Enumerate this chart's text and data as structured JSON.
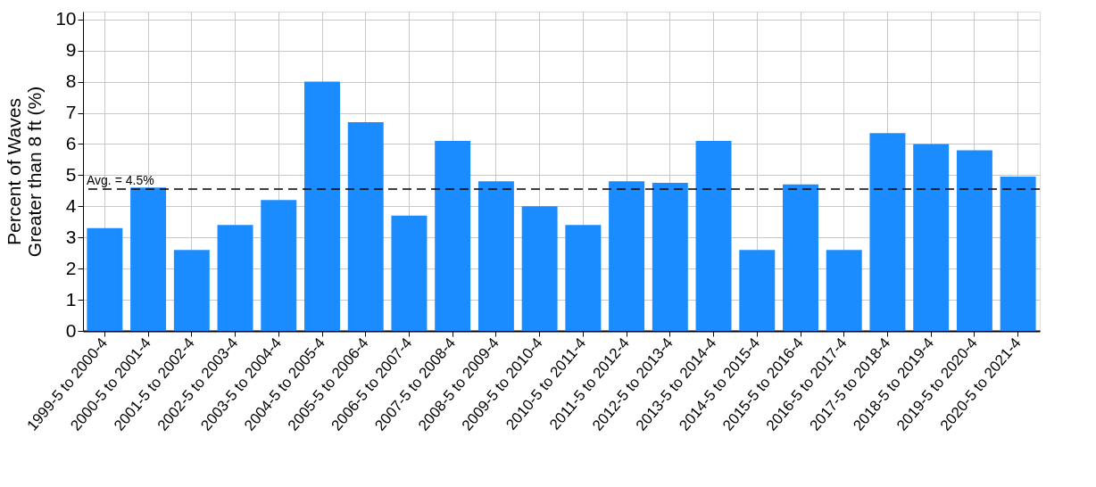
{
  "chart_data": {
    "type": "bar",
    "ylabel": "Percent of Waves\nGreater than 8 ft (%)",
    "categories": [
      "1999-5 to 2000-4",
      "2000-5 to 2001-4",
      "2001-5 to 2002-4",
      "2002-5 to 2003-4",
      "2003-5 to 2004-4",
      "2004-5 to 2005-4",
      "2005-5 to 2006-4",
      "2006-5 to 2007-4",
      "2007-5 to 2008-4",
      "2008-5 to 2009-4",
      "2009-5 to 2010-4",
      "2010-5 to 2011-4",
      "2011-5 to 2012-4",
      "2012-5 to 2013-4",
      "2013-5 to 2014-4",
      "2014-5 to 2015-4",
      "2015-5 to 2016-4",
      "2016-5 to 2017-4",
      "2017-5 to 2018-4",
      "2018-5 to 2019-4",
      "2019-5 to 2020-4",
      "2020-5 to 2021-4"
    ],
    "values": [
      3.3,
      4.6,
      2.6,
      3.4,
      4.2,
      8.0,
      6.7,
      3.7,
      6.1,
      4.8,
      4.0,
      3.4,
      4.8,
      4.75,
      6.1,
      2.6,
      4.7,
      2.6,
      6.35,
      6.0,
      5.8,
      4.95
    ],
    "color": "#1a8cff",
    "ylim": [
      0,
      10.25
    ],
    "yticks": [
      0,
      1,
      2,
      3,
      4,
      5,
      6,
      7,
      8,
      9,
      10
    ],
    "grid": true,
    "ref_lines": [
      {
        "axis": "y",
        "value": 4.55,
        "label": "Avg. = 4.5%",
        "color": "#000000",
        "line_style": "dashed"
      }
    ]
  }
}
